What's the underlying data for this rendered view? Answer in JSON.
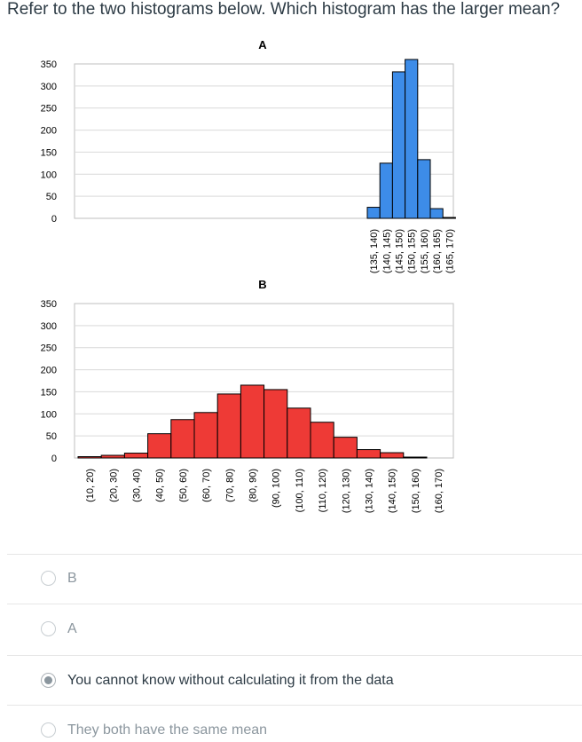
{
  "question": "Refer to the two histograms below. Which histogram has the larger mean?",
  "chart_data": [
    {
      "type": "bar",
      "title": "A",
      "color": "#3d8ce8",
      "ylim": [
        0,
        350
      ],
      "yticks": [
        0,
        50,
        100,
        150,
        200,
        250,
        300,
        350
      ],
      "grid": true,
      "categories": [
        "(135, 140)",
        "(140, 145)",
        "(145, 150)",
        "(150, 155)",
        "(155, 160)",
        "(160, 165)",
        "(165, 170)"
      ],
      "values": [
        25,
        125,
        332,
        360,
        133,
        22,
        2
      ]
    },
    {
      "type": "bar",
      "title": "B",
      "color": "#ee3a36",
      "ylim": [
        0,
        350
      ],
      "yticks": [
        0,
        50,
        100,
        150,
        200,
        250,
        300,
        350
      ],
      "grid": true,
      "categories": [
        "(10, 20)",
        "(20, 30)",
        "(30, 40)",
        "(40, 50)",
        "(50, 60)",
        "(60, 70)",
        "(70, 80)",
        "(80, 90)",
        "(90, 100)",
        "(100, 110)",
        "(110, 120)",
        "(120, 130)",
        "(130, 140)",
        "(140, 150)",
        "(150, 160)",
        "(160, 170)"
      ],
      "values": [
        3,
        6,
        11,
        55,
        87,
        103,
        145,
        165,
        155,
        113,
        81,
        47,
        19,
        12,
        2,
        0
      ]
    }
  ],
  "options": [
    {
      "label": "B",
      "selected": false
    },
    {
      "label": "A",
      "selected": false
    },
    {
      "label": "You cannot know without calculating it from the data",
      "selected": true
    },
    {
      "label": "They both have the same mean",
      "selected": false
    }
  ]
}
